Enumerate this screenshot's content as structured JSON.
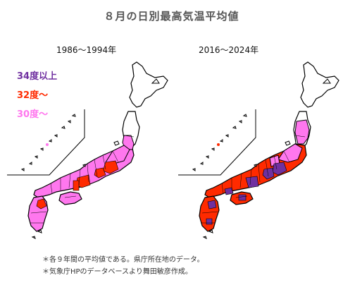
{
  "title": "８月の日別最高気温平均値",
  "periods": {
    "left": "1986～1994年",
    "right": "2016～2024年"
  },
  "legend": [
    {
      "label": "34度以上",
      "color": "#7030a0"
    },
    {
      "label": "32度～",
      "color": "#ff2a00"
    },
    {
      "label": "30度～",
      "color": "#ff77ee"
    }
  ],
  "notes": [
    "＊各９年間の平均値である。県庁所在地のデータ。",
    "＊気象庁HPのデータベースより舞田敏彦作成。"
  ],
  "map_layers": {
    "left": {
      "pink": true,
      "red_spots": [
        "kanto",
        "tokai",
        "kinki",
        "fukuoka"
      ],
      "purple_spots": []
    },
    "right": {
      "pink": true,
      "red_region": "western-and-central-honshu",
      "purple_spots": [
        "kanto",
        "tokai",
        "kinki",
        "chugoku",
        "shikoku",
        "kyushu"
      ]
    }
  }
}
